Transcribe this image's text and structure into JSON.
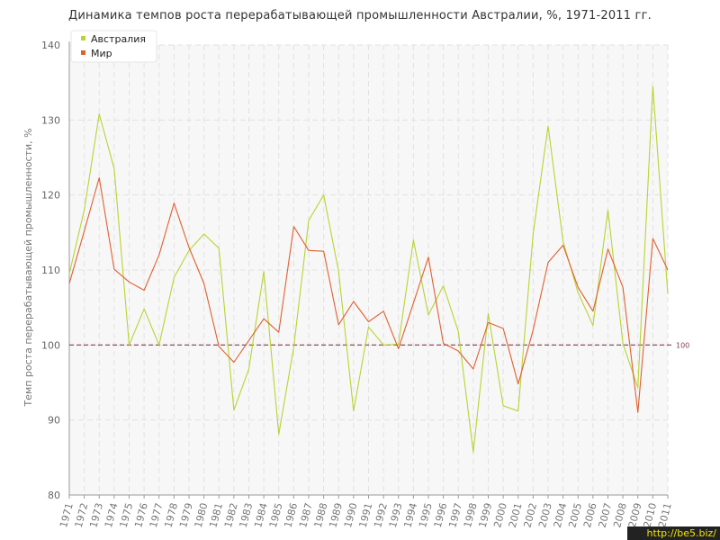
{
  "chart_data": {
    "type": "line",
    "title": "Динамика темпов роста перерабатывающей промышленности Австралии, %, 1971-2011 гг.",
    "ylabel": "Темп роста перерабатывающей промышленности, %",
    "xlabel": "",
    "ylim": [
      80,
      140
    ],
    "yticks": [
      80,
      90,
      100,
      110,
      120,
      130,
      140
    ],
    "grid": true,
    "legend_position": "top-left",
    "categories": [
      "1971",
      "1972",
      "1973",
      "1974",
      "1975",
      "1976",
      "1977",
      "1978",
      "1979",
      "1980",
      "1981",
      "1982",
      "1983",
      "1984",
      "1985",
      "1986",
      "1987",
      "1988",
      "1989",
      "1990",
      "1991",
      "1992",
      "1993",
      "1994",
      "1995",
      "1996",
      "1997",
      "1998",
      "1999",
      "2000",
      "2001",
      "2002",
      "2003",
      "2004",
      "2005",
      "2006",
      "2007",
      "2008",
      "2009",
      "2010",
      "2011"
    ],
    "series": [
      {
        "name": "Австралия",
        "color": "#b8d432",
        "values": [
          109.5,
          118,
          130.8,
          123.5,
          100,
          104.8,
          100,
          109,
          112.6,
          114.8,
          112.9,
          91.3,
          96.8,
          109.8,
          88.1,
          99.7,
          116.6,
          120,
          109.8,
          91.2,
          102.4,
          100,
          100.1,
          114,
          104,
          107.9,
          101.8,
          85.7,
          104.2,
          91.9,
          91.2,
          114.8,
          129.2,
          113.8,
          107,
          102.6,
          118,
          100.2,
          94.3,
          134.5,
          106.8
        ]
      },
      {
        "name": "Мир",
        "color": "#e06030",
        "values": [
          108.2,
          115.2,
          122.3,
          110.1,
          108.4,
          107.3,
          112,
          118.9,
          113,
          108.2,
          99.8,
          97.7,
          100.6,
          103.5,
          101.7,
          115.8,
          112.6,
          112.5,
          102.7,
          105.8,
          103.1,
          104.5,
          99.5,
          105.6,
          111.7,
          100.2,
          99.2,
          96.8,
          103,
          102.2,
          94.8,
          102,
          111,
          113.3,
          107.7,
          104.5,
          112.8,
          107.7,
          91,
          114.2,
          110
        ]
      }
    ],
    "reference_line": {
      "value": 100,
      "label": "100",
      "color": "#8b3a4a"
    }
  },
  "watermark": "http://be5.biz/"
}
